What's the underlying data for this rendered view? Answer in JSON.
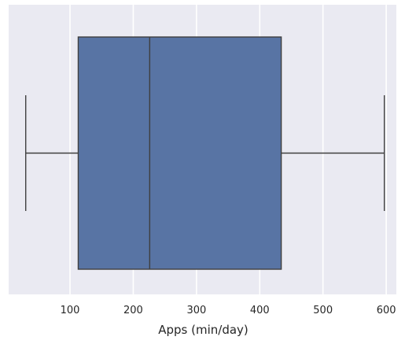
{
  "chart_data": {
    "type": "box",
    "orientation": "horizontal",
    "xlabel": "Apps (min/day)",
    "ylabel": "",
    "xlim": [
      3,
      616
    ],
    "xticks": [
      100,
      200,
      300,
      400,
      500,
      600
    ],
    "xtick_labels": [
      "100",
      "200",
      "300",
      "400",
      "500",
      "600"
    ],
    "grid": true,
    "legend": "none",
    "series": [
      {
        "whisker_low": 30,
        "q1": 113,
        "median": 226,
        "q3": 434,
        "whisker_high": 597
      }
    ],
    "colors": {
      "plot_background": "#eaeaf2",
      "grid": "#ffffff",
      "box_fill": "#5874a4",
      "box_edge": "#3f3f3f",
      "whisker": "#3f3f3f",
      "median": "#3f3f3f",
      "text": "#262626"
    }
  }
}
